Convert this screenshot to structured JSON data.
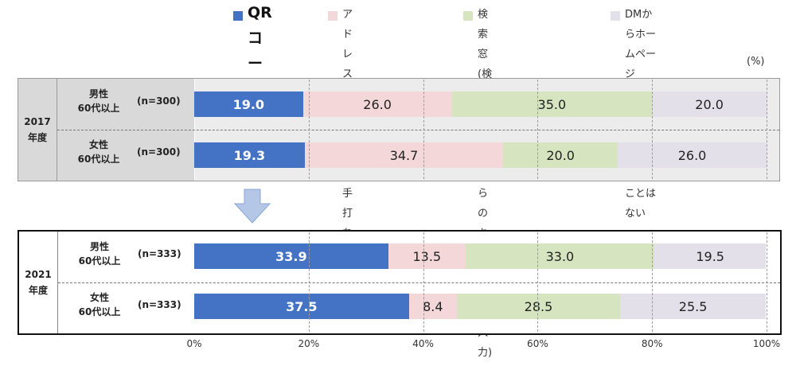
{
  "legend": [
    {
      "label": "QR\nコード",
      "color": "#4472c4",
      "big": true
    },
    {
      "label": "アドレスバー\nにURLを\n手打ちで入力",
      "color": "#f4d7d9"
    },
    {
      "label": "検索窓\n(検索サイトからの\nキーワード入力)",
      "color": "#d6e5bf"
    },
    {
      "label": "DMからホームページ\n（Webページ）へ\nアクセスすることはない",
      "color": "#e4e0ea"
    }
  ],
  "unit_label": "(%)",
  "colors": {
    "qr": "#4472c4",
    "address": "#f4d7d9",
    "search": "#d6e5bf",
    "none": "#e4e0ea"
  },
  "chart_data": {
    "type": "bar",
    "orientation": "horizontal",
    "stacked": true,
    "xlim": [
      0,
      100
    ],
    "tick_labels": [
      "0%",
      "20%",
      "40%",
      "60%",
      "80%",
      "100%"
    ],
    "tick_values": [
      0,
      20,
      40,
      60,
      80,
      100
    ],
    "series": [
      {
        "name": "QR\nコード",
        "color": "#4472c4"
      },
      {
        "name": "アドレスバー\nにURLを\n手打ちで入力",
        "color": "#f4d7d9"
      },
      {
        "name": "検索窓\n(検索サイトからの\nキーワード入力)",
        "color": "#d6e5bf"
      },
      {
        "name": "DMからホームページ\n（Webページ）へ\nアクセスすることはない",
        "color": "#e4e0ea"
      }
    ],
    "groups": [
      {
        "year": "2017\n年度",
        "rows": [
          {
            "sex": "男性\n60代以上",
            "n": "(n=300)",
            "values": [
              19.0,
              26.0,
              35.0,
              20.0
            ],
            "labels": [
              "19.0",
              "26.0",
              "35.0",
              "20.0"
            ]
          },
          {
            "sex": "女性\n60代以上",
            "n": "(n=300)",
            "values": [
              19.3,
              34.7,
              20.0,
              26.0
            ],
            "labels": [
              "19.3",
              "34.7",
              "20.0",
              "26.0"
            ]
          }
        ]
      },
      {
        "year": "2021\n年度",
        "rows": [
          {
            "sex": "男性\n60代以上",
            "n": "(n=333)",
            "values": [
              33.9,
              13.5,
              33.0,
              19.5
            ],
            "labels": [
              "33.9",
              "13.5",
              "33.0",
              "19.5"
            ]
          },
          {
            "sex": "女性\n60代以上",
            "n": "(n=333)",
            "values": [
              37.5,
              8.4,
              28.5,
              25.5
            ],
            "labels": [
              "37.5",
              "8.4",
              "28.5",
              "25.5"
            ]
          }
        ]
      }
    ]
  }
}
